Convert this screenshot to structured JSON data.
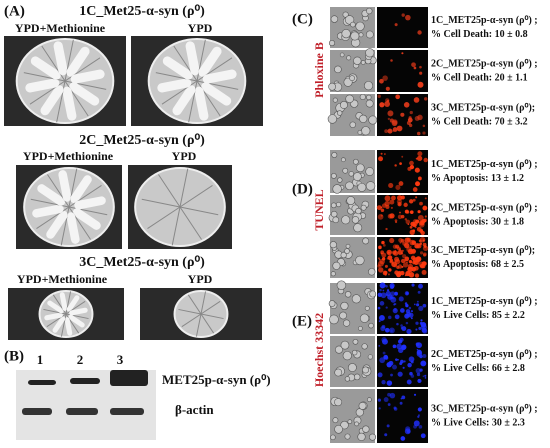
{
  "panel_a": {
    "label": "(A)",
    "groups": [
      {
        "title": "1C_Met25-α-syn (ρ⁰)",
        "left": "YPD+Methionine",
        "right": "YPD"
      },
      {
        "title": "2C_Met25-α-syn (ρ⁰)",
        "left": "YPD+Methionine",
        "right": "YPD"
      },
      {
        "title": "3C_Met25-α-syn (ρ⁰)",
        "left": "YPD+Methionine",
        "right": "YPD"
      }
    ]
  },
  "panel_b": {
    "label": "(B)",
    "lanes": [
      "1",
      "2",
      "3"
    ],
    "bands": [
      "MET25p-α-syn (ρ⁰)",
      "β-actin"
    ]
  },
  "panels_right": [
    {
      "label": "(C)",
      "stain": "Phloxine B",
      "rows": [
        {
          "strain": "1C_MET25p-α-syn (ρ⁰) ;",
          "result": "% Cell Death: 10 ± 0.8"
        },
        {
          "strain": "2C_MET25p-α-syn (ρ⁰) ;",
          "result": "% Cell Death: 20 ± 1.1"
        },
        {
          "strain": "3C_MET25p-α-syn (ρ⁰);",
          "result": "% Cell Death: 70 ± 3.2"
        }
      ]
    },
    {
      "label": "(D)",
      "stain": "TUNEL",
      "rows": [
        {
          "strain": "1C_MET25p-α-syn (ρ⁰) ;",
          "result": "% Apoptosis: 13 ± 1.2"
        },
        {
          "strain": "2C_MET25p-α-syn (ρ⁰) ;",
          "result": "% Apoptosis: 30 ± 1.8"
        },
        {
          "strain": "3C_MET25p-α-syn (ρ⁰);",
          "result": "% Apoptosis: 68 ± 2.5"
        }
      ]
    },
    {
      "label": "(E)",
      "stain": "Hoechst 33342",
      "rows": [
        {
          "strain": "1C_MET25p-α-syn (ρ⁰) ;",
          "result": "% Live Cells: 85 ± 2.2"
        },
        {
          "strain": "2C_MET25p-α-syn (ρ⁰) ;",
          "result": "% Live Cells: 66 ± 2.8"
        },
        {
          "strain": "3C_MET25p-α-syn (ρ⁰) ;",
          "result": "% Live Cells: 30 ± 2.3"
        }
      ]
    }
  ]
}
